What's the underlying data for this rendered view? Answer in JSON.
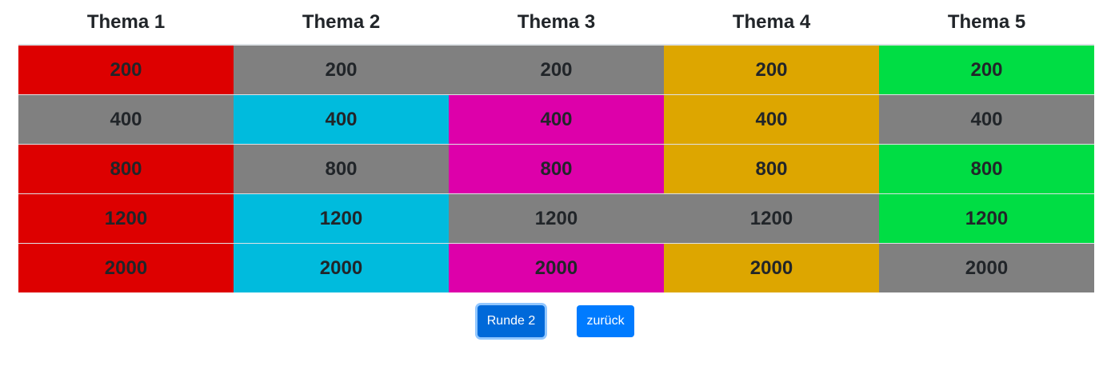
{
  "board": {
    "headers": [
      "Thema 1",
      "Thema 2",
      "Thema 3",
      "Thema 4",
      "Thema 5"
    ],
    "rows": [
      [
        {
          "value": "200",
          "color": "#dd0000"
        },
        {
          "value": "200",
          "color": "#808080"
        },
        {
          "value": "200",
          "color": "#808080"
        },
        {
          "value": "200",
          "color": "#dda600"
        },
        {
          "value": "200",
          "color": "#00dd44"
        }
      ],
      [
        {
          "value": "400",
          "color": "#808080"
        },
        {
          "value": "400",
          "color": "#00bbdd"
        },
        {
          "value": "400",
          "color": "#dd00aa"
        },
        {
          "value": "400",
          "color": "#dda600"
        },
        {
          "value": "400",
          "color": "#808080"
        }
      ],
      [
        {
          "value": "800",
          "color": "#dd0000"
        },
        {
          "value": "800",
          "color": "#808080"
        },
        {
          "value": "800",
          "color": "#dd00aa"
        },
        {
          "value": "800",
          "color": "#dda600"
        },
        {
          "value": "800",
          "color": "#00dd44"
        }
      ],
      [
        {
          "value": "1200",
          "color": "#dd0000"
        },
        {
          "value": "1200",
          "color": "#00bbdd"
        },
        {
          "value": "1200",
          "color": "#808080"
        },
        {
          "value": "1200",
          "color": "#808080"
        },
        {
          "value": "1200",
          "color": "#00dd44"
        }
      ],
      [
        {
          "value": "2000",
          "color": "#dd0000"
        },
        {
          "value": "2000",
          "color": "#00bbdd"
        },
        {
          "value": "2000",
          "color": "#dd00aa"
        },
        {
          "value": "2000",
          "color": "#dda600"
        },
        {
          "value": "2000",
          "color": "#808080"
        }
      ]
    ]
  },
  "buttons": {
    "round_label": "Runde 2",
    "back_label": "zurück",
    "round_color": "#0069d9",
    "back_color": "#007bff"
  }
}
